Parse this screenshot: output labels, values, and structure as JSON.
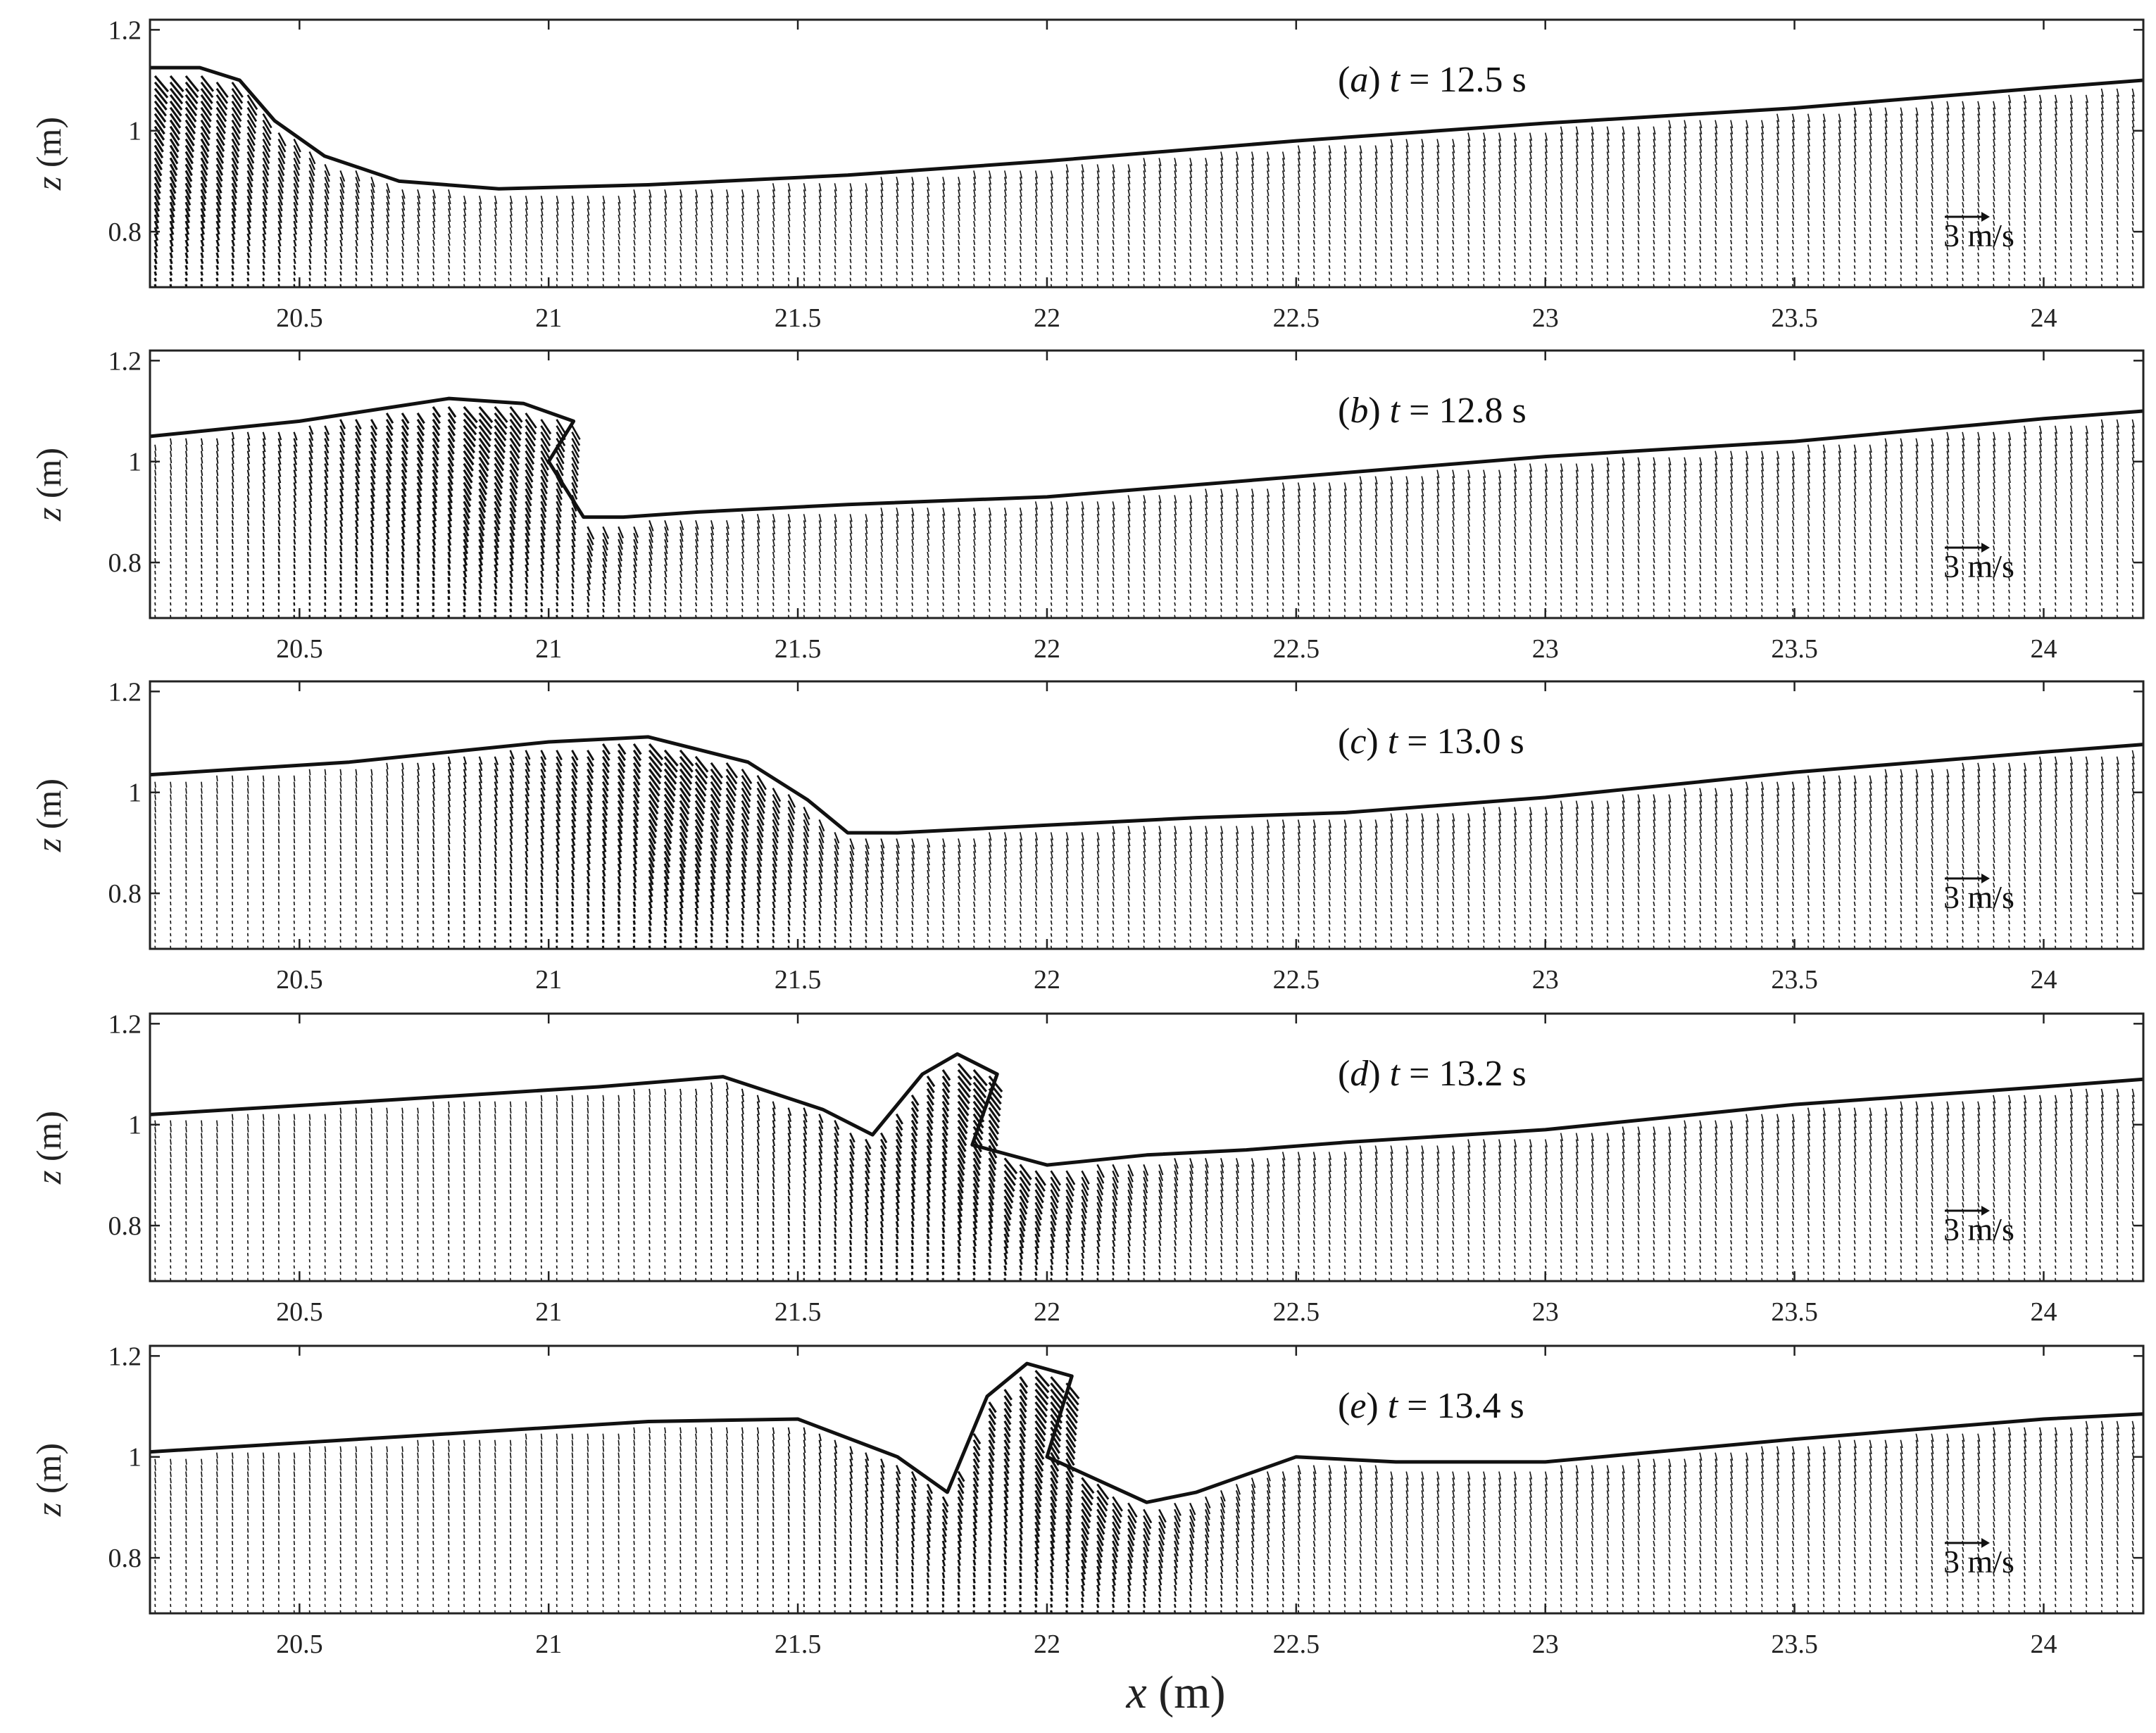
{
  "chart_data": {
    "type": "quiver",
    "xlabel_var": "x",
    "xlabel_unit": " (m)",
    "ylabel_var": "z",
    "ylabel_unit": " (m)",
    "xlim": [
      20.2,
      24.2
    ],
    "ylim": [
      0.69,
      1.22
    ],
    "xticks": [
      "20.5",
      "21",
      "21.5",
      "22",
      "22.5",
      "23",
      "23.5",
      "24"
    ],
    "xtick_values": [
      20.5,
      21,
      21.5,
      22,
      22.5,
      23,
      23.5,
      24
    ],
    "yticks": [
      "1.2",
      "1",
      "0.8"
    ],
    "ytick_values": [
      1.2,
      1.0,
      0.8
    ],
    "scale_arrow": {
      "value": "3",
      "unit": " m/s"
    },
    "panels": [
      {
        "letter": "a",
        "t_value": "12.5",
        "t_unit": " s",
        "surface": [
          [
            20.2,
            1.125
          ],
          [
            20.3,
            1.125
          ],
          [
            20.38,
            1.1
          ],
          [
            20.45,
            1.02
          ],
          [
            20.55,
            0.95
          ],
          [
            20.7,
            0.9
          ],
          [
            20.9,
            0.885
          ],
          [
            21.2,
            0.893
          ],
          [
            21.6,
            0.912
          ],
          [
            22,
            0.94
          ],
          [
            22.5,
            0.98
          ],
          [
            23,
            1.015
          ],
          [
            23.5,
            1.045
          ],
          [
            24,
            1.085
          ],
          [
            24.2,
            1.1
          ]
        ],
        "breaking": false
      },
      {
        "letter": "b",
        "t_value": "12.8",
        "t_unit": " s",
        "surface": [
          [
            20.2,
            1.05
          ],
          [
            20.5,
            1.08
          ],
          [
            20.8,
            1.125
          ],
          [
            20.95,
            1.115
          ],
          [
            21.05,
            1.08
          ],
          [
            21.0,
            1.0
          ],
          [
            21.07,
            0.89
          ],
          [
            21.15,
            0.89
          ],
          [
            21.3,
            0.9
          ],
          [
            21.6,
            0.915
          ],
          [
            22,
            0.93
          ],
          [
            22.5,
            0.97
          ],
          [
            23,
            1.01
          ],
          [
            23.5,
            1.04
          ],
          [
            24,
            1.085
          ],
          [
            24.2,
            1.1
          ]
        ],
        "breaking": true
      },
      {
        "letter": "c",
        "t_value": "13.0",
        "t_unit": " s",
        "surface": [
          [
            20.2,
            1.035
          ],
          [
            20.6,
            1.06
          ],
          [
            21.0,
            1.1
          ],
          [
            21.2,
            1.11
          ],
          [
            21.4,
            1.06
          ],
          [
            21.52,
            0.985
          ],
          [
            21.6,
            0.92
          ],
          [
            21.7,
            0.92
          ],
          [
            22,
            0.935
          ],
          [
            22.3,
            0.95
          ],
          [
            22.6,
            0.96
          ],
          [
            23,
            0.99
          ],
          [
            23.5,
            1.04
          ],
          [
            24,
            1.08
          ],
          [
            24.2,
            1.095
          ]
        ],
        "breaking": true
      },
      {
        "letter": "d",
        "t_value": "13.2",
        "t_unit": " s",
        "surface": [
          [
            20.2,
            1.02
          ],
          [
            20.7,
            1.05
          ],
          [
            21.1,
            1.075
          ],
          [
            21.35,
            1.095
          ],
          [
            21.55,
            1.03
          ],
          [
            21.65,
            0.98
          ],
          [
            21.75,
            1.1
          ],
          [
            21.82,
            1.14
          ],
          [
            21.9,
            1.1
          ],
          [
            21.85,
            0.96
          ],
          [
            22.0,
            0.92
          ],
          [
            22.2,
            0.94
          ],
          [
            22.4,
            0.95
          ],
          [
            22.6,
            0.965
          ],
          [
            23,
            0.99
          ],
          [
            23.5,
            1.04
          ],
          [
            24,
            1.075
          ],
          [
            24.2,
            1.09
          ]
        ],
        "breaking": true
      },
      {
        "letter": "e",
        "t_value": "13.4",
        "t_unit": " s",
        "surface": [
          [
            20.2,
            1.01
          ],
          [
            20.7,
            1.04
          ],
          [
            21.2,
            1.07
          ],
          [
            21.5,
            1.075
          ],
          [
            21.7,
            1.0
          ],
          [
            21.8,
            0.93
          ],
          [
            21.88,
            1.12
          ],
          [
            21.96,
            1.185
          ],
          [
            22.05,
            1.16
          ],
          [
            22.0,
            1.0
          ],
          [
            22.2,
            0.91
          ],
          [
            22.3,
            0.93
          ],
          [
            22.5,
            1.0
          ],
          [
            22.7,
            0.99
          ],
          [
            23,
            0.99
          ],
          [
            23.5,
            1.035
          ],
          [
            24,
            1.075
          ],
          [
            24.2,
            1.085
          ]
        ],
        "breaking": true
      }
    ]
  }
}
